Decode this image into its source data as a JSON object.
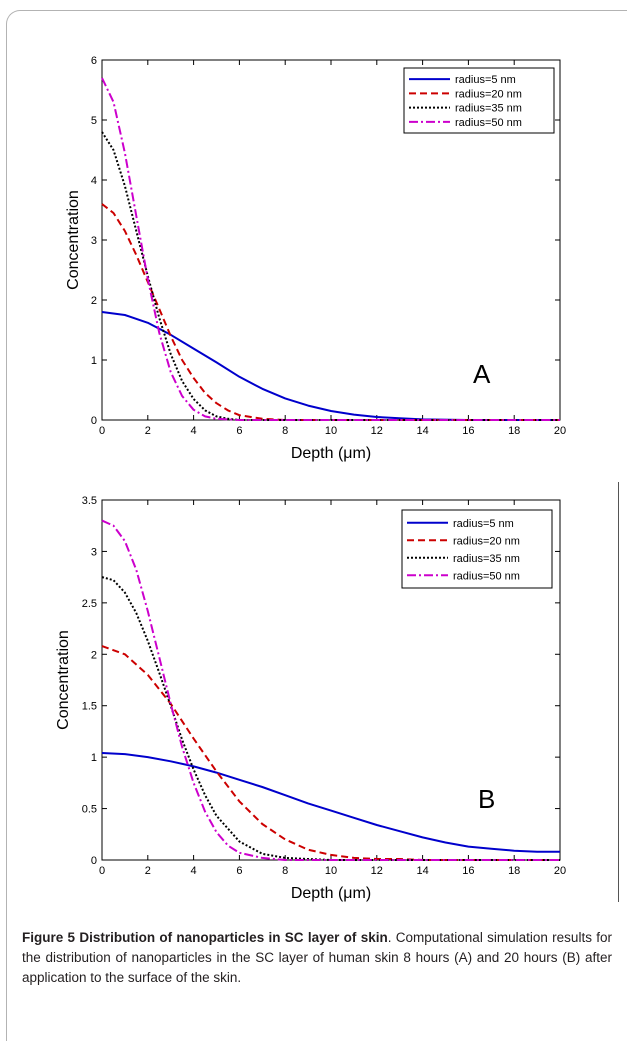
{
  "chart_data": [
    {
      "type": "line",
      "panel_label": "A",
      "xlabel": "Depth (μm)",
      "ylabel": "Concentration",
      "xlim": [
        0,
        20
      ],
      "ylim": [
        0,
        6
      ],
      "xticks": [
        0,
        2,
        4,
        6,
        8,
        10,
        12,
        14,
        16,
        18,
        20
      ],
      "yticks": [
        0,
        1,
        2,
        3,
        4,
        5,
        6
      ],
      "ytick_labels": [
        "0",
        "1",
        "2",
        "3",
        "4",
        "5",
        "6"
      ],
      "legend_position": "top-right",
      "grid": false,
      "series": [
        {
          "name": "radius=5 nm",
          "color": "#0000cc",
          "style": "solid",
          "x": [
            0,
            1,
            2,
            3,
            4,
            5,
            6,
            7,
            8,
            9,
            10,
            11,
            12,
            13,
            14,
            16,
            18,
            20
          ],
          "y": [
            1.8,
            1.75,
            1.62,
            1.42,
            1.19,
            0.96,
            0.72,
            0.52,
            0.36,
            0.24,
            0.15,
            0.09,
            0.05,
            0.03,
            0.01,
            0,
            0,
            0
          ]
        },
        {
          "name": "radius=20 nm",
          "color": "#cc0000",
          "style": "dashed",
          "x": [
            0,
            0.5,
            1,
            1.5,
            2,
            2.5,
            3,
            3.5,
            4,
            4.5,
            5,
            5.5,
            6,
            7,
            8,
            10,
            20
          ],
          "y": [
            3.6,
            3.45,
            3.15,
            2.75,
            2.3,
            1.85,
            1.4,
            1.0,
            0.7,
            0.45,
            0.28,
            0.16,
            0.08,
            0.02,
            0,
            0,
            0
          ]
        },
        {
          "name": "radius=35 nm",
          "color": "#000000",
          "style": "dotted",
          "x": [
            0,
            0.5,
            1,
            1.5,
            2,
            2.5,
            3,
            3.5,
            4,
            4.5,
            5,
            5.5,
            6,
            8,
            20
          ],
          "y": [
            4.8,
            4.5,
            3.9,
            3.15,
            2.4,
            1.7,
            1.1,
            0.65,
            0.35,
            0.16,
            0.06,
            0.02,
            0,
            0,
            0
          ]
        },
        {
          "name": "radius=50 nm",
          "color": "#cc00cc",
          "style": "dashdot",
          "x": [
            0,
            0.5,
            1,
            1.5,
            2,
            2.5,
            3,
            3.5,
            4,
            4.5,
            5,
            6,
            20
          ],
          "y": [
            5.7,
            5.3,
            4.45,
            3.4,
            2.35,
            1.45,
            0.8,
            0.4,
            0.17,
            0.06,
            0.02,
            0,
            0
          ]
        }
      ]
    },
    {
      "type": "line",
      "panel_label": "B",
      "xlabel": "Depth (μm)",
      "ylabel": "Concentration",
      "xlim": [
        0,
        20
      ],
      "ylim": [
        0,
        3.5
      ],
      "xticks": [
        0,
        2,
        4,
        6,
        8,
        10,
        12,
        14,
        16,
        18,
        20
      ],
      "yticks": [
        0,
        0.5,
        1,
        1.5,
        2,
        2.5,
        3,
        3.5
      ],
      "ytick_labels": [
        "0",
        "0.5",
        "1",
        "1.5",
        "2",
        "2.5",
        "3",
        "3.5"
      ],
      "legend_position": "top-right",
      "grid": false,
      "series": [
        {
          "name": "radius=5 nm",
          "color": "#0000cc",
          "style": "solid",
          "x": [
            0,
            1,
            2,
            3,
            4,
            5,
            6,
            7,
            8,
            9,
            10,
            11,
            12,
            13,
            14,
            15,
            16,
            17,
            18,
            19,
            20
          ],
          "y": [
            1.04,
            1.03,
            1.0,
            0.96,
            0.91,
            0.85,
            0.78,
            0.71,
            0.63,
            0.55,
            0.48,
            0.41,
            0.34,
            0.28,
            0.22,
            0.17,
            0.13,
            0.11,
            0.09,
            0.08,
            0.08
          ]
        },
        {
          "name": "radius=20 nm",
          "color": "#cc0000",
          "style": "dashed",
          "x": [
            0,
            1,
            2,
            3,
            4,
            5,
            6,
            7,
            8,
            9,
            10,
            11,
            12,
            13,
            14,
            16,
            20
          ],
          "y": [
            2.08,
            2.0,
            1.8,
            1.52,
            1.18,
            0.86,
            0.57,
            0.35,
            0.2,
            0.1,
            0.05,
            0.02,
            0.01,
            0.01,
            0,
            0,
            0
          ]
        },
        {
          "name": "radius=35 nm",
          "color": "#000000",
          "style": "dotted",
          "x": [
            0,
            0.5,
            1,
            1.5,
            2,
            2.5,
            3,
            3.5,
            4,
            4.5,
            5,
            6,
            7,
            8,
            9,
            10,
            20
          ],
          "y": [
            2.75,
            2.72,
            2.6,
            2.4,
            2.13,
            1.82,
            1.5,
            1.17,
            0.88,
            0.63,
            0.43,
            0.18,
            0.06,
            0.02,
            0.01,
            0,
            0
          ]
        },
        {
          "name": "radius=50 nm",
          "color": "#cc00cc",
          "style": "dashdot",
          "x": [
            0,
            0.5,
            1,
            1.5,
            2,
            2.5,
            3,
            3.5,
            4,
            4.5,
            5,
            5.5,
            6,
            7,
            8,
            9,
            20
          ],
          "y": [
            3.3,
            3.25,
            3.1,
            2.82,
            2.42,
            1.97,
            1.52,
            1.1,
            0.75,
            0.47,
            0.27,
            0.14,
            0.07,
            0.02,
            0,
            0,
            0
          ]
        }
      ]
    }
  ],
  "caption": {
    "title": "Figure 5 Distribution of nanoparticles in SC layer of skin",
    "text": ". Computational simulation results for the distribution of nanoparticles in the SC layer of human skin 8 hours (A) and 20 hours (B) after application to the surface of the skin."
  }
}
